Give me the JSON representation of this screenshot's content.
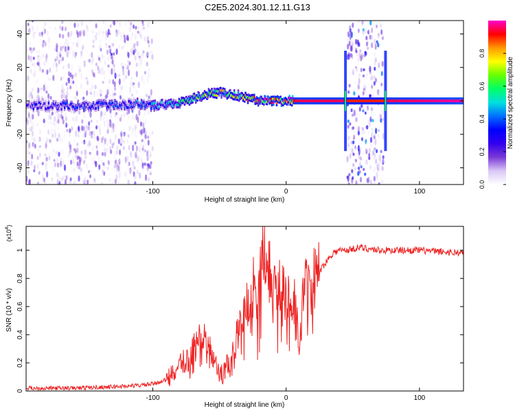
{
  "title": "C2E5.2024.301.12.11.G13",
  "chart_data": [
    {
      "type": "heatmap",
      "xlabel": "Height of straight line (km)",
      "ylabel": "Frequency (Hz)",
      "xlim": [
        -195,
        133
      ],
      "ylim": [
        -50,
        48
      ],
      "xticks": [
        -100,
        0,
        100
      ],
      "yticks": [
        -40,
        -20,
        0,
        20,
        40
      ],
      "colorbar": {
        "label": "Normalized spectral amplitude",
        "range": [
          0,
          1
        ],
        "ticks": [
          0.0,
          0.2,
          0.4,
          0.6,
          0.8
        ],
        "colors": [
          "#ffffff",
          "#d9c7f5",
          "#7a3ad6",
          "#3300ee",
          "#0000ff",
          "#0070ff",
          "#00e0e0",
          "#00ff66",
          "#66ff00",
          "#ffff00",
          "#ff9900",
          "#ff0000",
          "#ff00cc"
        ]
      },
      "ridge": {
        "x": [
          -195,
          -170,
          -150,
          -130,
          -110,
          -100,
          -90,
          -80,
          -70,
          -60,
          -50,
          -40,
          -30,
          -20,
          -10,
          0,
          10,
          44,
          46,
          74,
          76,
          133
        ],
        "y": [
          -3,
          -3,
          -3,
          -2,
          -2,
          -3,
          -2,
          -1,
          1,
          4,
          5,
          4,
          2,
          0,
          0,
          0,
          0,
          0,
          0,
          0,
          0,
          0
        ],
        "amplitude": [
          0.25,
          0.28,
          0.3,
          0.32,
          0.35,
          0.35,
          0.4,
          0.45,
          0.5,
          0.55,
          0.6,
          0.6,
          0.65,
          0.75,
          0.8,
          0.9,
          0.95,
          0.95,
          0.9,
          0.9,
          0.95,
          0.98
        ]
      },
      "noise_regions": [
        {
          "x": [
            -195,
            -100
          ],
          "amplitude": 0.15
        },
        {
          "x": [
            46,
            73
          ],
          "amplitude": 0.25
        }
      ]
    },
    {
      "type": "line",
      "xlabel": "Height of straight line (km)",
      "ylabel": "SNR (10 * v/v)",
      "multiplier_label": "(x10",
      "multiplier_exp": "4",
      "xlim": [
        -195,
        133
      ],
      "ylim": [
        0,
        1.17
      ],
      "xticks": [
        -100,
        0,
        100
      ],
      "yticks": [
        0.0,
        0.2,
        0.4,
        0.6,
        0.8,
        1.0
      ],
      "color": "#ee2222",
      "series": [
        {
          "x": [
            -195,
            -160,
            -130,
            -110,
            -100,
            -90,
            -85,
            -80,
            -75,
            -70,
            -66,
            -62,
            -58,
            -55,
            -52,
            -48,
            -45,
            -42,
            -38,
            -35,
            -32,
            -30,
            -27,
            -24,
            -22,
            -19,
            -17,
            -15,
            -12,
            -9,
            -6,
            -3,
            0,
            3,
            6,
            10,
            13,
            16,
            20,
            25,
            30,
            35,
            40,
            45,
            55,
            70,
            85,
            100,
            115,
            133
          ],
          "y": [
            0.02,
            0.02,
            0.03,
            0.04,
            0.05,
            0.08,
            0.12,
            0.18,
            0.22,
            0.3,
            0.35,
            0.42,
            0.3,
            0.25,
            0.15,
            0.12,
            0.2,
            0.18,
            0.35,
            0.45,
            0.5,
            0.62,
            0.55,
            0.8,
            0.5,
            0.9,
            1.17,
            0.78,
            0.85,
            0.7,
            0.75,
            0.7,
            0.72,
            0.6,
            0.68,
            0.3,
            0.75,
            0.72,
            0.78,
            0.85,
            0.92,
            0.98,
            1.0,
            1.0,
            1.02,
            1.0,
            1.0,
            1.0,
            0.99,
            0.98
          ]
        }
      ]
    }
  ]
}
